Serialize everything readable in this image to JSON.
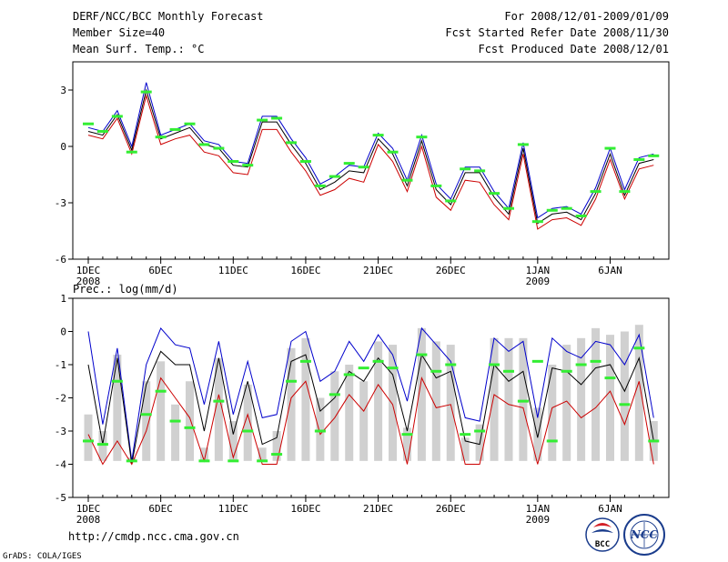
{
  "header": {
    "title": "DERF/NCC/BCC Monthly Forecast",
    "member_size": "Member Size=40",
    "variable": "Mean Surf. Temp.: °C",
    "period": "For 2008/12/01-2009/01/09",
    "fcst_started": "Fcst Started Refer Date 2008/11/30",
    "fcst_produced": "Fcst Produced Date 2008/12/01"
  },
  "footer": {
    "url": "http://cmdp.ncc.cma.gov.cn",
    "grads": "GrADS: COLA/IGES",
    "logo_bcc": "BCC",
    "logo_ncc": "NCC"
  },
  "colors": {
    "frame": "#000000",
    "ensemble_max": "#0000cc",
    "ensemble_min": "#cc0000",
    "ensemble_mean": "#000000",
    "observed": "#33ee33",
    "bars": "#d0d0d0"
  },
  "chart_data": [
    {
      "type": "line",
      "title": "Mean Surf. Temp.: °C",
      "ylabel": "°C",
      "ylim": [
        -6,
        4.5
      ],
      "yticks": [
        -6,
        -3,
        0,
        3
      ],
      "xticks": [
        {
          "day": 1,
          "label": "1DEC",
          "sub": "2008"
        },
        {
          "day": 6,
          "label": "6DEC",
          "sub": ""
        },
        {
          "day": 11,
          "label": "11DEC",
          "sub": ""
        },
        {
          "day": 16,
          "label": "16DEC",
          "sub": ""
        },
        {
          "day": 21,
          "label": "21DEC",
          "sub": ""
        },
        {
          "day": 26,
          "label": "26DEC",
          "sub": ""
        },
        {
          "day": 32,
          "label": "1JAN",
          "sub": "2009"
        },
        {
          "day": 37,
          "label": "6JAN",
          "sub": ""
        }
      ],
      "days": [
        1,
        2,
        3,
        4,
        5,
        6,
        7,
        8,
        9,
        10,
        11,
        12,
        13,
        14,
        15,
        16,
        17,
        18,
        19,
        20,
        21,
        22,
        23,
        24,
        25,
        26,
        27,
        28,
        29,
        30,
        31,
        32,
        33,
        34,
        35,
        36,
        37,
        38,
        39,
        40
      ],
      "series": [
        {
          "name": "ensemble_max",
          "values": [
            1.0,
            0.8,
            1.9,
            0.0,
            3.4,
            0.6,
            0.9,
            1.2,
            0.3,
            0.1,
            -0.8,
            -0.9,
            1.6,
            1.6,
            0.4,
            -0.6,
            -2.0,
            -1.6,
            -1.0,
            -1.1,
            0.7,
            -0.1,
            -1.8,
            0.6,
            -2.0,
            -2.8,
            -1.1,
            -1.1,
            -2.4,
            -3.3,
            0.2,
            -3.8,
            -3.3,
            -3.2,
            -3.6,
            -2.2,
            -0.1,
            -2.3,
            -0.6,
            -0.4
          ]
        },
        {
          "name": "ensemble_mean",
          "values": [
            0.8,
            0.6,
            1.7,
            -0.2,
            3.0,
            0.4,
            0.7,
            1.0,
            0.1,
            -0.1,
            -1.0,
            -1.1,
            1.3,
            1.3,
            0.1,
            -0.9,
            -2.3,
            -1.9,
            -1.3,
            -1.4,
            0.4,
            -0.4,
            -2.1,
            0.3,
            -2.3,
            -3.1,
            -1.4,
            -1.4,
            -2.7,
            -3.6,
            -0.1,
            -4.1,
            -3.6,
            -3.5,
            -3.9,
            -2.5,
            -0.4,
            -2.6,
            -0.9,
            -0.7
          ]
        },
        {
          "name": "ensemble_min",
          "values": [
            0.6,
            0.4,
            1.5,
            -0.4,
            2.7,
            0.1,
            0.4,
            0.6,
            -0.3,
            -0.5,
            -1.4,
            -1.5,
            0.9,
            0.9,
            -0.3,
            -1.3,
            -2.6,
            -2.3,
            -1.7,
            -1.9,
            0.1,
            -0.8,
            -2.4,
            0.0,
            -2.7,
            -3.4,
            -1.8,
            -1.9,
            -3.1,
            -3.9,
            -0.4,
            -4.4,
            -3.9,
            -3.8,
            -4.2,
            -2.8,
            -0.7,
            -2.8,
            -1.2,
            -1.0
          ]
        },
        {
          "name": "observed",
          "values": [
            1.2,
            0.8,
            1.6,
            -0.3,
            2.9,
            0.5,
            0.9,
            1.2,
            0.1,
            -0.1,
            -0.8,
            -1.0,
            1.4,
            1.5,
            0.2,
            -0.8,
            -2.1,
            -1.6,
            -0.9,
            -1.1,
            0.6,
            -0.3,
            -1.8,
            0.5,
            -2.1,
            -2.9,
            -1.2,
            -1.3,
            -2.5,
            -3.3,
            0.1,
            -4.0,
            -3.4,
            -3.3,
            -3.7,
            -2.4,
            -0.1,
            -2.4,
            -0.7,
            -0.5
          ]
        }
      ]
    },
    {
      "type": "line",
      "title": "Prec.: log(mm/d)",
      "ylabel": "log(mm/d)",
      "ylim": [
        -5,
        1
      ],
      "yticks": [
        -5,
        -4,
        -3,
        -2,
        -1,
        0,
        1
      ],
      "xticks": [
        {
          "day": 1,
          "label": "1DEC",
          "sub": "2008"
        },
        {
          "day": 6,
          "label": "6DEC",
          "sub": ""
        },
        {
          "day": 11,
          "label": "11DEC",
          "sub": ""
        },
        {
          "day": 16,
          "label": "16DEC",
          "sub": ""
        },
        {
          "day": 21,
          "label": "21DEC",
          "sub": ""
        },
        {
          "day": 26,
          "label": "26DEC",
          "sub": ""
        },
        {
          "day": 32,
          "label": "1JAN",
          "sub": "2009"
        },
        {
          "day": 37,
          "label": "6JAN",
          "sub": ""
        }
      ],
      "days": [
        1,
        2,
        3,
        4,
        5,
        6,
        7,
        8,
        9,
        10,
        11,
        12,
        13,
        14,
        15,
        16,
        17,
        18,
        19,
        20,
        21,
        22,
        23,
        24,
        25,
        26,
        27,
        28,
        29,
        30,
        31,
        32,
        33,
        34,
        35,
        36,
        37,
        38,
        39,
        40
      ],
      "bars": {
        "name": "member_spread",
        "bottom": [
          -3.9,
          -3.9,
          -3.9,
          -3.9,
          -3.9,
          -3.9,
          -3.9,
          -3.9,
          -3.9,
          -3.9,
          -3.9,
          -3.9,
          -3.9,
          -3.9,
          -3.9,
          -3.9,
          -3.9,
          -3.9,
          -3.9,
          -3.9,
          -3.9,
          -3.9,
          -3.9,
          -3.9,
          -3.9,
          -3.9,
          -3.9,
          -3.9,
          -3.9,
          -3.9,
          -3.9,
          -3.9,
          -3.9,
          -3.9,
          -3.9,
          -3.9,
          -3.9,
          -3.9,
          -3.9,
          -3.9
        ],
        "top": [
          -2.5,
          -3.0,
          -0.7,
          -3.8,
          -1.5,
          -0.9,
          -2.2,
          -1.5,
          -3.5,
          -0.8,
          -2.7,
          -1.6,
          -3.5,
          -3.0,
          -0.5,
          -0.2,
          -2.0,
          -1.2,
          -1.0,
          -1.5,
          -0.3,
          -0.4,
          -2.9,
          0.1,
          -0.3,
          -0.4,
          -3.2,
          -2.8,
          -0.2,
          -0.2,
          -0.2,
          -2.3,
          -1.0,
          -0.4,
          -0.2,
          0.1,
          -0.1,
          0.0,
          0.2,
          -2.7
        ]
      },
      "series": [
        {
          "name": "ensemble_max",
          "values": [
            0.0,
            -2.8,
            -0.5,
            -3.9,
            -1.0,
            0.1,
            -0.4,
            -0.5,
            -2.2,
            -0.3,
            -2.5,
            -0.9,
            -2.6,
            -2.5,
            -0.3,
            0.0,
            -1.5,
            -1.2,
            -0.3,
            -0.9,
            -0.1,
            -0.7,
            -2.1,
            0.1,
            -0.4,
            -0.9,
            -2.6,
            -2.7,
            -0.2,
            -0.6,
            -0.3,
            -2.6,
            -0.2,
            -0.6,
            -0.8,
            -0.3,
            -0.4,
            -1.0,
            -0.1,
            -2.6
          ]
        },
        {
          "name": "ensemble_mean",
          "values": [
            -1.0,
            -3.4,
            -0.8,
            -4.0,
            -1.6,
            -0.6,
            -1.0,
            -1.0,
            -3.0,
            -0.8,
            -3.1,
            -1.5,
            -3.4,
            -3.2,
            -0.9,
            -0.7,
            -2.4,
            -2.0,
            -1.2,
            -1.5,
            -0.8,
            -1.3,
            -3.0,
            -0.7,
            -1.4,
            -1.2,
            -3.3,
            -3.4,
            -1.0,
            -1.5,
            -1.2,
            -3.2,
            -1.1,
            -1.2,
            -1.6,
            -1.1,
            -1.0,
            -1.8,
            -0.8,
            -3.3
          ]
        },
        {
          "name": "ensemble_min",
          "values": [
            -3.1,
            -4.0,
            -3.3,
            -4.0,
            -3.0,
            -1.4,
            -2.0,
            -2.6,
            -3.9,
            -1.9,
            -3.8,
            -2.5,
            -4.0,
            -4.0,
            -2.0,
            -1.5,
            -3.1,
            -2.6,
            -1.9,
            -2.4,
            -1.6,
            -2.2,
            -4.0,
            -1.4,
            -2.3,
            -2.2,
            -4.0,
            -4.0,
            -1.9,
            -2.2,
            -2.3,
            -4.0,
            -2.3,
            -2.1,
            -2.6,
            -2.3,
            -1.8,
            -2.8,
            -1.5,
            -4.0
          ]
        },
        {
          "name": "observed",
          "values": [
            -3.3,
            -3.4,
            -1.5,
            -3.9,
            -2.5,
            -1.8,
            -2.7,
            -2.9,
            -3.9,
            -2.1,
            -3.9,
            -3.0,
            -3.9,
            -3.7,
            -1.5,
            -0.9,
            -3.0,
            -1.9,
            -1.3,
            -1.1,
            -0.9,
            -1.1,
            -3.1,
            -0.7,
            -1.2,
            -1.0,
            -3.1,
            -3.0,
            -1.0,
            -1.2,
            -2.1,
            -0.9,
            -3.3,
            -1.2,
            -1.0,
            -0.9,
            -1.4,
            -2.2,
            -0.5,
            -3.3
          ]
        }
      ]
    }
  ]
}
